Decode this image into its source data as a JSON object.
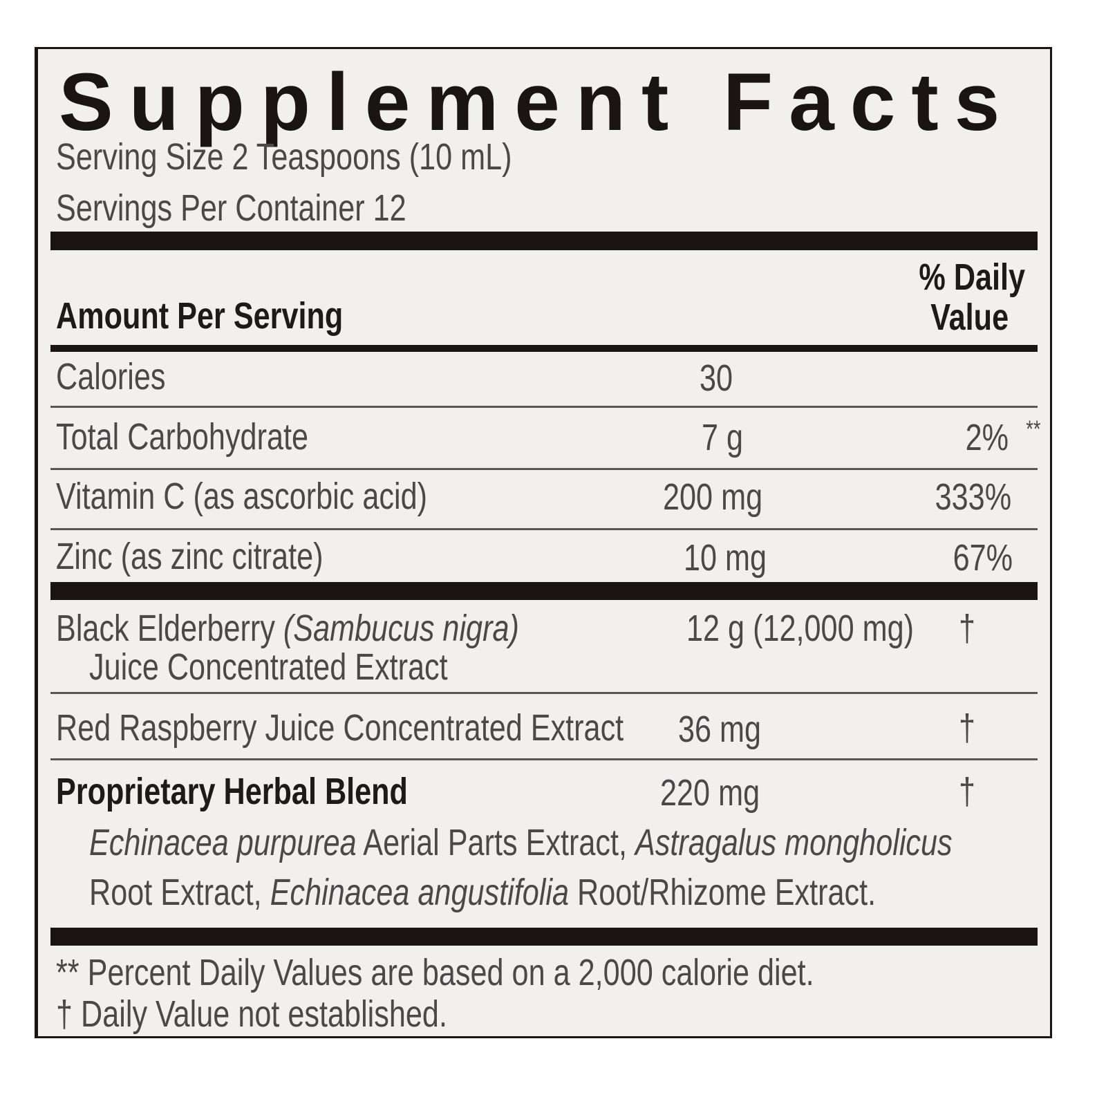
{
  "title": "Supplement Facts",
  "serving_size": "Serving Size 2 Teaspoons (10 mL)",
  "servings_per_container": "Servings Per Container 12",
  "header": {
    "amount_per_serving": "Amount Per Serving",
    "dv_line1": "% Daily",
    "dv_line2": "Value"
  },
  "rows": [
    {
      "name": "Calories",
      "amount": "30",
      "dv": ""
    },
    {
      "name": "Total Carbohydrate",
      "amount": "7 g",
      "dv": "2%",
      "dv_mark": "**"
    },
    {
      "name": "Vitamin C (as ascorbic acid)",
      "amount": "200 mg",
      "dv": "333%"
    },
    {
      "name": "Zinc (as zinc citrate)",
      "amount": "10 mg",
      "dv": "67%"
    }
  ],
  "ingredients": [
    {
      "name": "Black Elderberry",
      "latin": "(Sambucus nigra)",
      "name_line2": "Juice Concentrated Extract",
      "amount": "12 g (12,000 mg)",
      "dv": "†"
    },
    {
      "name": "Red Raspberry Juice Concentrated Extract",
      "amount": "36 mg",
      "dv": "†"
    },
    {
      "name": "Proprietary Herbal Blend",
      "amount": "220 mg",
      "dv": "†",
      "blend": {
        "p1_latin": "Echinacea purpurea",
        "p1_text": " Aerial Parts Extract, ",
        "p2_latin": "Astragalus mongholicus",
        "p3_text": "Root Extract, ",
        "p4_latin": "Echinacea angustifolia",
        "p4_text": " Root/Rhizome Extract."
      }
    }
  ],
  "footnotes": [
    "** Percent Daily Values are based on a 2,000 calorie diet.",
    "† Daily Value not established."
  ],
  "colors": {
    "background": "#f1f0ee",
    "text": "#4a4848",
    "rule": "#1a1414"
  }
}
